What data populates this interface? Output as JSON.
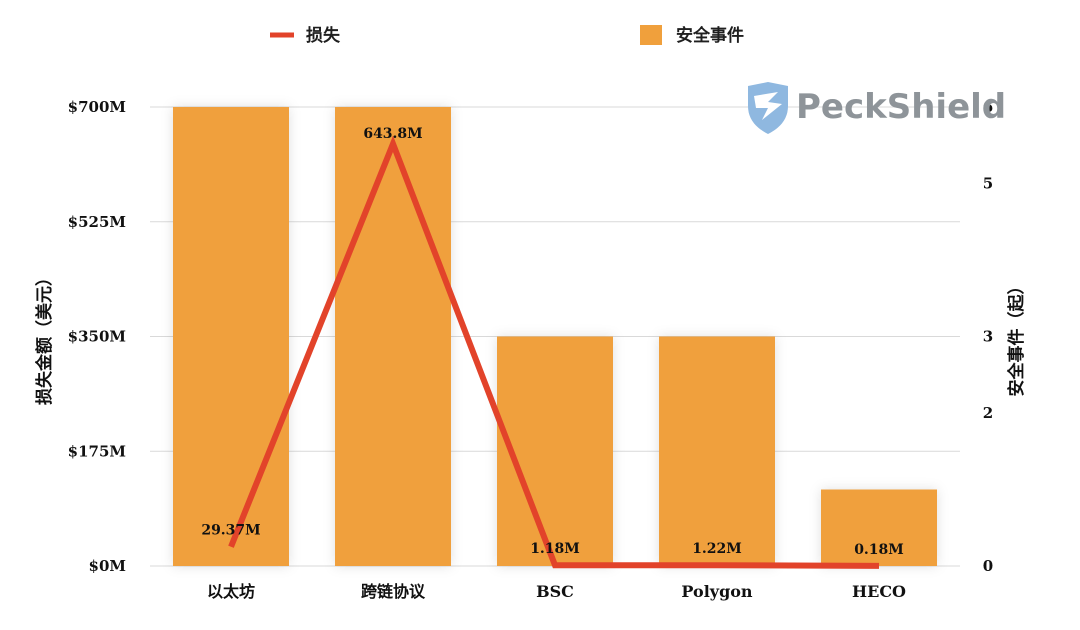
{
  "chart_data": {
    "type": "bar",
    "categories": [
      "以太坊",
      "跨链协议",
      "BSC",
      "Polygon",
      "HECO"
    ],
    "series": [
      {
        "name": "安全事件",
        "kind": "bar",
        "axis": "right",
        "color": "#f0a03c",
        "values": [
          6,
          6,
          3,
          3,
          1
        ]
      },
      {
        "name": "损失",
        "kind": "line",
        "axis": "left",
        "color": "#e2432a",
        "values": [
          29.37,
          643.8,
          1.18,
          1.22,
          0.18
        ]
      }
    ],
    "data_labels": [
      "29.37M",
      "643.8M",
      "1.18M",
      "1.22M",
      "0.18M"
    ],
    "y_left": {
      "label": "损失金额（美元）",
      "range": [
        0,
        700
      ],
      "ticks": [
        0,
        175,
        350,
        525,
        700
      ],
      "tick_labels": [
        "$0M",
        "$175M",
        "$350M",
        "$525M",
        "$700M"
      ]
    },
    "y_right": {
      "label": "安全事件（起）",
      "range": [
        0,
        6
      ],
      "ticks": [
        0,
        2,
        3,
        5,
        6
      ],
      "tick_labels": [
        "0",
        "2",
        "3",
        "5",
        "6"
      ]
    },
    "legend": {
      "position": "top",
      "items": [
        "损失",
        "安全事件"
      ]
    },
    "grid": true
  },
  "watermark": {
    "text": "PeckShield",
    "icon": "shield-eagle-icon",
    "color": "#8e9499"
  },
  "colors": {
    "bar": "#f0a03c",
    "line": "#e2432a",
    "grid": "#d9d9d9"
  }
}
